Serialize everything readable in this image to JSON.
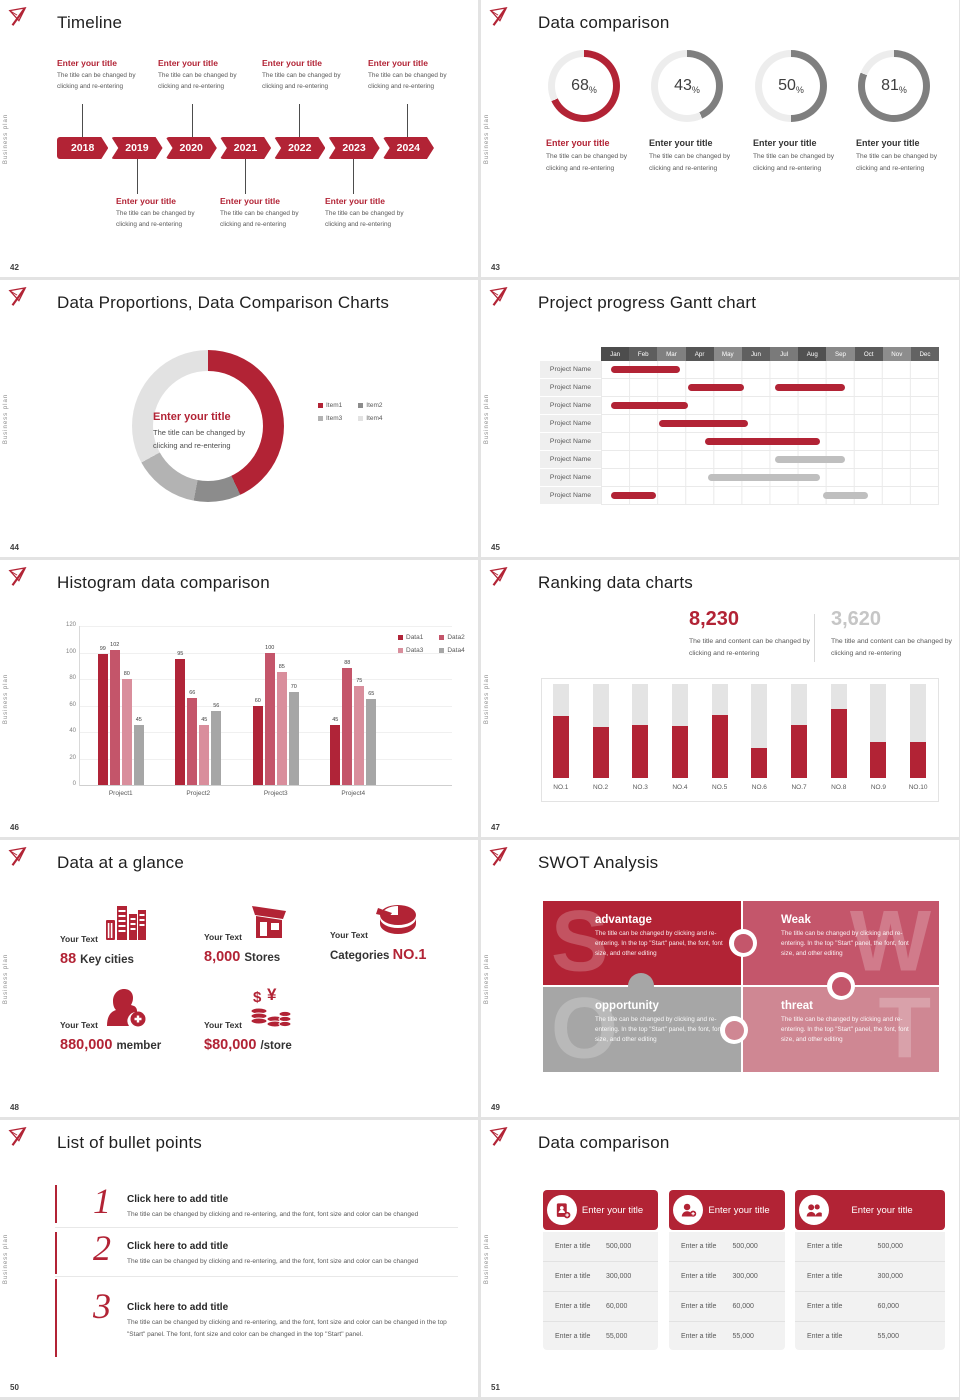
{
  "global": {
    "brand_vertical_text": "Business plan"
  },
  "colors": {
    "red": "#b22335",
    "gray_bar": "#bfbfbf",
    "track": "#ededed",
    "ring_gray": "#7f7f7f"
  },
  "slides": [
    {
      "number": "42",
      "title": "Timeline",
      "years": [
        "2018",
        "2019",
        "2020",
        "2021",
        "2022",
        "2023",
        "2024"
      ],
      "entry_title": "Enter your title",
      "entry_body": "The title can be changed by clicking and re-entering"
    },
    {
      "number": "43",
      "title": "Data comparison",
      "chart_data": {
        "type": "donut-rings",
        "values": [
          68,
          43,
          50,
          81
        ],
        "unit": "%",
        "colors": [
          "#b22335",
          "#7f7f7f",
          "#7f7f7f",
          "#7f7f7f"
        ]
      },
      "rings": [
        {
          "value": "68",
          "suffix": "%",
          "accent": true
        },
        {
          "value": "43",
          "suffix": "%",
          "accent": false
        },
        {
          "value": "50",
          "suffix": "%",
          "accent": false
        },
        {
          "value": "81",
          "suffix": "%",
          "accent": false
        }
      ],
      "entry_title": "Enter your title",
      "entry_body": "The title can be changed by clicking and re-entering"
    },
    {
      "number": "44",
      "title": "Data Proportions, Data Comparison Charts",
      "chart_data": {
        "type": "pie",
        "labels": [
          "Item1",
          "Item2",
          "Item3",
          "Item4"
        ],
        "values": [
          43,
          10,
          14,
          33
        ],
        "colors": [
          "#b22335",
          "#8c8c8c",
          "#b3b3b3",
          "#e2e2e2"
        ]
      },
      "center_title": "Enter your title",
      "center_body": "The title can be changed by clicking and re-entering"
    },
    {
      "number": "45",
      "title": "Project progress Gantt chart",
      "chart_data": {
        "type": "gantt",
        "months": [
          "Jan",
          "Feb",
          "Mar",
          "Apr",
          "May",
          "Jun",
          "Jul",
          "Aug",
          "Sep",
          "Oct",
          "Nov",
          "Dec"
        ],
        "rows": [
          {
            "label": "Project Name",
            "bars": [
              {
                "start": 0.35,
                "end": 2.8,
                "color": "red"
              }
            ]
          },
          {
            "label": "Project Name",
            "bars": [
              {
                "start": 3.1,
                "end": 5.1,
                "color": "red"
              },
              {
                "start": 6.2,
                "end": 8.7,
                "color": "red"
              }
            ]
          },
          {
            "label": "Project Name",
            "bars": [
              {
                "start": 0.35,
                "end": 3.1,
                "color": "red"
              }
            ]
          },
          {
            "label": "Project Name",
            "bars": [
              {
                "start": 2.05,
                "end": 5.25,
                "color": "red"
              }
            ]
          },
          {
            "label": "Project Name",
            "bars": [
              {
                "start": 3.7,
                "end": 7.8,
                "color": "red"
              }
            ]
          },
          {
            "label": "Project Name",
            "bars": [
              {
                "start": 6.2,
                "end": 8.7,
                "color": "gray"
              }
            ]
          },
          {
            "label": "Project Name",
            "bars": [
              {
                "start": 3.8,
                "end": 7.8,
                "color": "gray"
              }
            ]
          },
          {
            "label": "Project Name",
            "bars": [
              {
                "start": 0.35,
                "end": 1.95,
                "color": "red"
              },
              {
                "start": 7.9,
                "end": 9.5,
                "color": "gray"
              }
            ]
          }
        ]
      }
    },
    {
      "number": "46",
      "title": "Histogram data comparison",
      "chart_data": {
        "type": "bar",
        "categories": [
          "Project1",
          "Project2",
          "Project3",
          "Project4"
        ],
        "series": [
          {
            "name": "Data1",
            "color": "#b02438",
            "values": [
              99,
              95,
              60,
              45
            ]
          },
          {
            "name": "Data2",
            "color": "#c4556a",
            "values": [
              102,
              66,
              100,
              88
            ]
          },
          {
            "name": "Data3",
            "color": "#d98e9c",
            "values": [
              80,
              45,
              85,
              75
            ]
          },
          {
            "name": "Data4",
            "color": "#a6a6a6",
            "values": [
              45,
              56,
              70,
              65
            ]
          }
        ],
        "ylim": [
          0,
          120
        ],
        "yticks": [
          120,
          100,
          80,
          60,
          40,
          20,
          0
        ],
        "legend_position": "top-right",
        "grid": true
      }
    },
    {
      "number": "47",
      "title": "Ranking data charts",
      "stat_left": {
        "value": "8,230",
        "desc": "The title and content can be changed by clicking and re-entering"
      },
      "stat_right": {
        "value": "3,620",
        "desc": "The title and content can be changed by clicking and re-entering"
      },
      "chart_data": {
        "type": "bar",
        "categories": [
          "NO.1",
          "NO.2",
          "NO.3",
          "NO.4",
          "NO.5",
          "NO.6",
          "NO.7",
          "NO.8",
          "NO.9",
          "NO.10"
        ],
        "values": [
          66,
          54,
          56,
          55,
          67,
          32,
          56,
          73,
          38,
          38
        ],
        "ylim": [
          0,
          100
        ]
      }
    },
    {
      "number": "48",
      "title": "Data at a glance",
      "items": [
        {
          "label": "Your Text",
          "value": "88",
          "unit": "Key cities",
          "icon": "city-buildings-icon",
          "unit_first": false
        },
        {
          "label": "Your Text",
          "value": "8,000",
          "unit": "Stores",
          "icon": "store-icon",
          "unit_first": false
        },
        {
          "label": "Your Text",
          "value": "NO.1",
          "unit": "Categories",
          "icon": "pie-chart-icon",
          "unit_first": true
        },
        {
          "label": "Your Text",
          "value": "880,000",
          "unit": "member",
          "icon": "add-member-icon",
          "unit_first": false
        },
        {
          "label": "Your Text",
          "value": "$80,000",
          "unit": "/store",
          "icon": "coins-icon",
          "unit_first": false
        }
      ]
    },
    {
      "number": "49",
      "title": "SWOT Analysis",
      "quadrants": [
        {
          "letter": "S",
          "title": "advantage",
          "color": "#b22335",
          "body": "The title can be changed by clicking and re-entering. In the top \"Start\" panel, the font, font size, and other editing"
        },
        {
          "letter": "W",
          "title": "Weak",
          "color": "#c4566b",
          "body": "The title can be changed by clicking and re-entering. In the top \"Start\" panel, the font, font size, and other editing"
        },
        {
          "letter": "O",
          "title": "opportunity",
          "color": "#a6a6a6",
          "body": "The title can be changed by clicking and re-entering. In the top \"Start\" panel, the font, font size, and other editing"
        },
        {
          "letter": "T",
          "title": "threat",
          "color": "#cf8793",
          "body": "The title can be changed by clicking and re-entering. In the top \"Start\" panel, the font, font size, and other editing"
        }
      ]
    },
    {
      "number": "50",
      "title": "List of bullet points",
      "items": [
        {
          "num": "1",
          "title": "Click here to add title",
          "body": "The title can be changed by clicking and re-entering, and the font, font size and color can be changed"
        },
        {
          "num": "2",
          "title": "Click here to add title",
          "body": "The title can be changed by clicking and re-entering, and the font, font size and color can be changed"
        },
        {
          "num": "3",
          "title": "Click here to add title",
          "body": "The title can be changed by clicking and re-entering, and the font, font size and color can be changed in the top \"Start\" panel. The font, font size and color can be changed in the top \"Start\" panel."
        }
      ]
    },
    {
      "number": "51",
      "title": "Data comparison",
      "cards": [
        {
          "header": "Enter your title",
          "icon": "contact-card-add-icon",
          "rows": [
            [
              "Enter a title",
              "500,000"
            ],
            [
              "Enter a title",
              "300,000"
            ],
            [
              "Enter a title",
              "60,000"
            ],
            [
              "Enter a title",
              "55,000"
            ]
          ]
        },
        {
          "header": "Enter your title",
          "icon": "person-add-icon",
          "rows": [
            [
              "Enter a title",
              "500,000"
            ],
            [
              "Enter a title",
              "300,000"
            ],
            [
              "Enter a title",
              "60,000"
            ],
            [
              "Enter a title",
              "55,000"
            ]
          ]
        },
        {
          "header": "Enter your title",
          "icon": "people-group-icon",
          "rows": [
            [
              "Enter a title",
              "500,000"
            ],
            [
              "Enter a title",
              "300,000"
            ],
            [
              "Enter a title",
              "60,000"
            ],
            [
              "Enter a title",
              "55,000"
            ]
          ]
        }
      ]
    }
  ]
}
